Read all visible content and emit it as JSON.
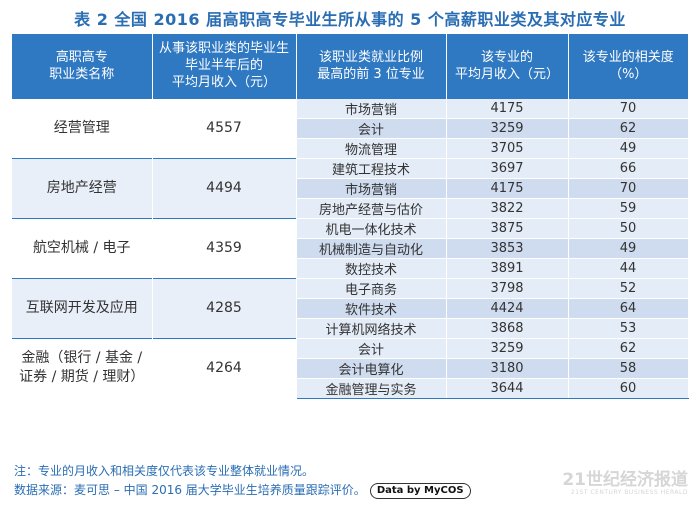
{
  "title": "表 2  全国 2016 届高职高专毕业生所从事的 5 个高薪职业类及其对应专业",
  "headers": [
    "高职高专\n职业类名称",
    "从事该职业类的毕业生\n毕业半年后的\n平均月收入（元）",
    "该职业类就业比例\n最高的前 3 位专业",
    "该专业的\n平均月收入（元）",
    "该专业的相关度\n（%）"
  ],
  "groups": [
    {
      "category": "经营管理",
      "salary": "4557",
      "majors": [
        {
          "name": "市场营销",
          "income": "4175",
          "relevance": "70"
        },
        {
          "name": "会计",
          "income": "3259",
          "relevance": "62"
        },
        {
          "name": "物流管理",
          "income": "3705",
          "relevance": "49"
        }
      ]
    },
    {
      "category": "房地产经营",
      "salary": "4494",
      "majors": [
        {
          "name": "建筑工程技术",
          "income": "3697",
          "relevance": "66"
        },
        {
          "name": "市场营销",
          "income": "4175",
          "relevance": "70"
        },
        {
          "name": "房地产经营与估价",
          "income": "3822",
          "relevance": "59"
        }
      ]
    },
    {
      "category": "航空机械 / 电子",
      "salary": "4359",
      "majors": [
        {
          "name": "机电一体化技术",
          "income": "3875",
          "relevance": "50"
        },
        {
          "name": "机械制造与自动化",
          "income": "3853",
          "relevance": "49"
        },
        {
          "name": "数控技术",
          "income": "3891",
          "relevance": "44"
        }
      ]
    },
    {
      "category": "互联网开发及应用",
      "salary": "4285",
      "majors": [
        {
          "name": "电子商务",
          "income": "3798",
          "relevance": "52"
        },
        {
          "name": "软件技术",
          "income": "4424",
          "relevance": "64"
        },
        {
          "name": "计算机网络技术",
          "income": "3868",
          "relevance": "53"
        }
      ]
    },
    {
      "category": "金融（银行 / 基金 /\n证券 / 期货 / 理财）",
      "salary": "4264",
      "majors": [
        {
          "name": "会计",
          "income": "3259",
          "relevance": "62"
        },
        {
          "name": "会计电算化",
          "income": "3180",
          "relevance": "58"
        },
        {
          "name": "金融管理与实务",
          "income": "3644",
          "relevance": "60"
        }
      ]
    }
  ],
  "footer": {
    "note": "注：专业的月收入和相关度仅代表该专业整体就业情况。",
    "source": "数据来源：麦可思 – 中国 2016 届大学毕业生培养质量跟踪评价。",
    "badge": "Data by MyCOS"
  },
  "watermark": {
    "main": "21世纪经济报道",
    "sub": "21ST CENTURY BUSINESS HERALD"
  },
  "colors": {
    "header_bg": "#2f78c2",
    "title": "#2a6db3",
    "row_light": "#e4ecf7",
    "row_dark": "#cfdcef"
  }
}
